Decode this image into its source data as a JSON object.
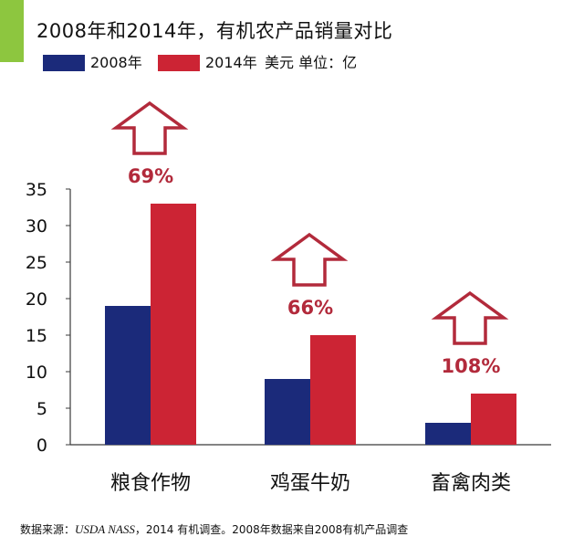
{
  "colors": {
    "accent_bar": "#8dc63f",
    "series_2008": "#1b2a7a",
    "series_2014": "#cc2434",
    "arrow": "#b22a3b",
    "axis": "#3a3a3a",
    "text": "#111111"
  },
  "chart_data": {
    "type": "bar",
    "title": "2008年和2014年，有机农产品销量对比",
    "unit_label": "美元 单位：亿",
    "categories": [
      "粮食作物",
      "鸡蛋牛奶",
      "畜禽肉类"
    ],
    "series": [
      {
        "name": "2008年",
        "values": [
          19,
          9,
          3
        ]
      },
      {
        "name": "2014年",
        "values": [
          33,
          15,
          7
        ]
      }
    ],
    "growth_labels": [
      "69%",
      "66%",
      "108%"
    ],
    "ylim": [
      0,
      35
    ],
    "yticks": [
      0,
      5,
      10,
      15,
      20,
      25,
      30,
      35
    ],
    "grid": false,
    "legend_position": "top-left"
  },
  "footer": {
    "source_prefix": "数据来源：",
    "source_italic": "USDA NASS",
    "source_rest": "，2014 有机调查。2008年数据来自2008有机产品调查"
  }
}
